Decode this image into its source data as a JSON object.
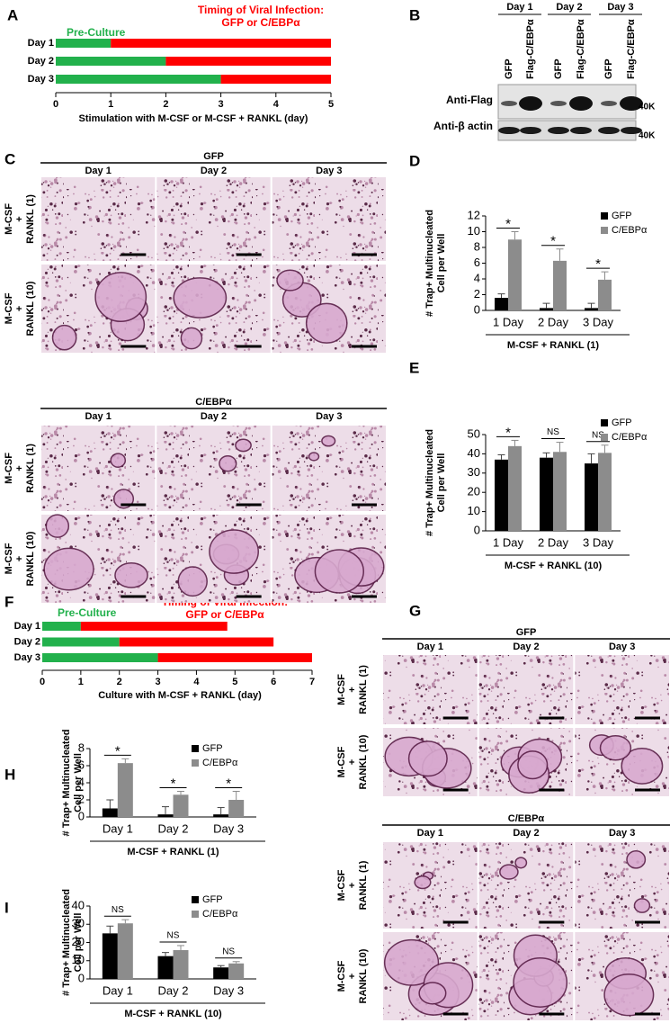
{
  "chart_data": [
    {
      "type": "bar",
      "orientation": "horizontal",
      "stacked": true,
      "panel": "A",
      "categories": [
        "Day 1",
        "Day 2",
        "Day 3"
      ],
      "series": [
        {
          "name": "Pre-Culture",
          "color": "#22b14c",
          "values": [
            1,
            2,
            3
          ]
        },
        {
          "color": "#ff0000",
          "values": [
            4,
            3,
            2
          ]
        }
      ],
      "annotations": [
        "Timing of  Viral Infection:",
        "GFP or C/EBPα"
      ],
      "xlabel": "Stimulation with M-CSF or  M-CSF + RANKL (day)",
      "xlim": [
        0,
        5
      ],
      "xticks": [
        0,
        1,
        2,
        3,
        4,
        5
      ]
    },
    {
      "type": "bar",
      "panel": "D",
      "categories": [
        "1 Day",
        "2 Day",
        "3 Day"
      ],
      "series": [
        {
          "name": "GFP",
          "color": "#000000",
          "values": [
            1.6,
            0.3,
            0.3
          ],
          "errors": [
            0.5,
            0.6,
            0.6
          ]
        },
        {
          "name": "C/EBPα",
          "color": "#8c8c8c",
          "values": [
            9,
            6.3,
            3.9
          ],
          "errors": [
            1,
            1.5,
            1
          ]
        }
      ],
      "annotations": [
        "*",
        "*",
        "*"
      ],
      "ylabel": [
        "# Trap+ Multinucleated",
        "Cell  per Well"
      ],
      "xlabel": "M-CSF + RANKL (1)",
      "ylim": [
        0,
        12
      ],
      "yticks": [
        0,
        2,
        4,
        6,
        8,
        10,
        12
      ]
    },
    {
      "type": "bar",
      "panel": "E",
      "categories": [
        "1 Day",
        "2 Day",
        "3 Day"
      ],
      "series": [
        {
          "name": "GFP",
          "color": "#000000",
          "values": [
            37,
            38,
            35
          ],
          "errors": [
            2.5,
            2.5,
            5
          ]
        },
        {
          "name": "C/EBPα",
          "color": "#8c8c8c",
          "values": [
            44,
            41,
            40.5
          ],
          "errors": [
            3,
            5,
            4
          ]
        }
      ],
      "annotations": [
        "*",
        "NS",
        "NS"
      ],
      "ylabel": [
        "# Trap+ Multinucleated",
        "Cell  per Well"
      ],
      "xlabel": "M-CSF + RANKL (10)",
      "ylim": [
        0,
        50
      ],
      "yticks": [
        0,
        10,
        20,
        30,
        40,
        50
      ]
    },
    {
      "type": "bar",
      "orientation": "horizontal",
      "stacked": true,
      "panel": "F",
      "categories": [
        "Day 1",
        "Day 2",
        "Day 3"
      ],
      "series": [
        {
          "name": "Pre-Culture",
          "color": "#22b14c",
          "values": [
            1,
            2,
            3
          ]
        },
        {
          "color": "#ff0000",
          "values": [
            3.8,
            4,
            4
          ]
        }
      ],
      "annotations": [
        "Timing of  Viral Infection:",
        "GFP or C/EBPα"
      ],
      "xlabel": "Culture with M-CSF + RANKL (day)",
      "xlim": [
        0,
        7
      ],
      "xticks": [
        0,
        1,
        2,
        3,
        4,
        5,
        6,
        7
      ]
    },
    {
      "type": "bar",
      "panel": "H",
      "categories": [
        "Day 1",
        "Day 2",
        "Day 3"
      ],
      "series": [
        {
          "name": "GFP",
          "color": "#000000",
          "values": [
            1,
            0.3,
            0.3
          ],
          "errors": [
            1,
            0.9,
            0.8
          ]
        },
        {
          "name": "C/EBPα",
          "color": "#8c8c8c",
          "values": [
            6.3,
            2.6,
            2
          ],
          "errors": [
            0.5,
            0.4,
            1
          ]
        }
      ],
      "annotations": [
        "*",
        "*",
        "*"
      ],
      "ylabel": [
        "# Trap+ Multinucleated",
        "Cell  per Well"
      ],
      "xlabel": "M-CSF + RANKL (1)",
      "ylim": [
        0,
        8
      ],
      "yticks": [
        0,
        2,
        4,
        6,
        8
      ]
    },
    {
      "type": "bar",
      "panel": "I",
      "categories": [
        "Day 1",
        "Day 2",
        "Day 3"
      ],
      "series": [
        {
          "name": "GFP",
          "color": "#000000",
          "values": [
            25,
            12.5,
            6.3
          ],
          "errors": [
            4,
            2,
            1
          ]
        },
        {
          "name": "C/EBPα",
          "color": "#8c8c8c",
          "values": [
            30.5,
            15.8,
            8.5
          ],
          "errors": [
            2,
            2.5,
            1
          ]
        }
      ],
      "annotations": [
        "NS",
        "NS",
        "NS"
      ],
      "ylabel": [
        "# Trap+ Multinucleated",
        "Cell  per Well"
      ],
      "xlabel": "M-CSF + RANKL (10)",
      "ylim": [
        0,
        40
      ],
      "yticks": [
        0,
        10,
        20,
        30,
        40
      ]
    }
  ],
  "blot": {
    "panel": "B",
    "days": [
      "Day 1",
      "Day 2",
      "Day 3"
    ],
    "lanes": [
      "GFP",
      "Flag-C/EBPα",
      "GFP",
      "Flag-C/EBPα",
      "GFP",
      "Flag-C/EBPα"
    ],
    "rows": [
      "Anti-Flag",
      "Anti-β actin"
    ],
    "markers": [
      "40K",
      "40K"
    ]
  },
  "micrographs": [
    {
      "panel": "C",
      "sections": [
        {
          "title": "GFP",
          "columns": [
            "Day 1",
            "Day 2",
            "Day 3"
          ],
          "rows": [
            [
              "M-CSF",
              "+",
              "RANKL (1)"
            ],
            [
              "M-CSF",
              "+",
              "RANKL (10)"
            ]
          ]
        },
        {
          "title": "C/EBPα",
          "columns": [
            "Day 1",
            "Day 2",
            "Day 3"
          ],
          "rows": [
            [
              "M-CSF",
              "+",
              "RANKL (1)"
            ],
            [
              "M-CSF",
              "+",
              "RANKL (10)"
            ]
          ]
        }
      ]
    },
    {
      "panel": "G",
      "sections": [
        {
          "title": "GFP",
          "columns": [
            "Day 1",
            "Day 2",
            "Day 3"
          ],
          "rows": [
            [
              "M-CSF",
              "+",
              "RANKL (1)"
            ],
            [
              "M-CSF",
              "+",
              "RANKL (10)"
            ]
          ]
        },
        {
          "title": "C/EBPα",
          "columns": [
            "Day 1",
            "Day 2",
            "Day 3"
          ],
          "rows": [
            [
              "M-CSF",
              "+",
              "RANKL (1)"
            ],
            [
              "M-CSF",
              "+",
              "RANKL (10)"
            ]
          ]
        }
      ]
    }
  ]
}
